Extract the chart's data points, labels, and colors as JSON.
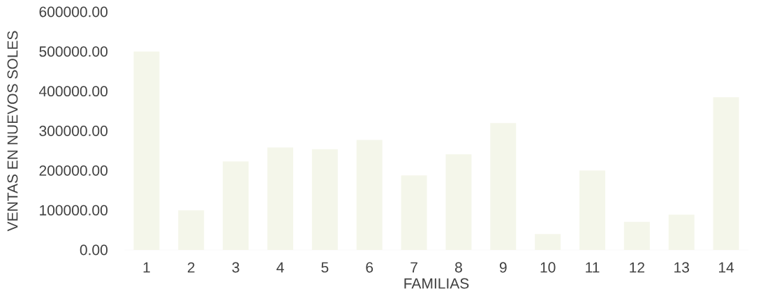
{
  "chart_data": {
    "type": "bar",
    "xlabel": "FAMILIAS",
    "ylabel": "VENTAS EN NUEVOS SOLES",
    "categories": [
      "1",
      "2",
      "3",
      "4",
      "5",
      "6",
      "7",
      "8",
      "9",
      "10",
      "11",
      "12",
      "13",
      "14"
    ],
    "values": [
      500000,
      100000,
      223000,
      258000,
      254000,
      277000,
      188000,
      241000,
      320000,
      40000,
      200000,
      71000,
      89000,
      385000
    ],
    "color": "#f4f6ea",
    "ylim": [
      0,
      600000
    ],
    "yticks": [
      {
        "value": 0,
        "label": "0.00"
      },
      {
        "value": 100000,
        "label": "100000.00"
      },
      {
        "value": 200000,
        "label": "200000.00"
      },
      {
        "value": 300000,
        "label": "300000.00"
      },
      {
        "value": 400000,
        "label": "400000.00"
      },
      {
        "value": 500000,
        "label": "500000.00"
      },
      {
        "value": 600000,
        "label": "600000.00"
      }
    ]
  }
}
